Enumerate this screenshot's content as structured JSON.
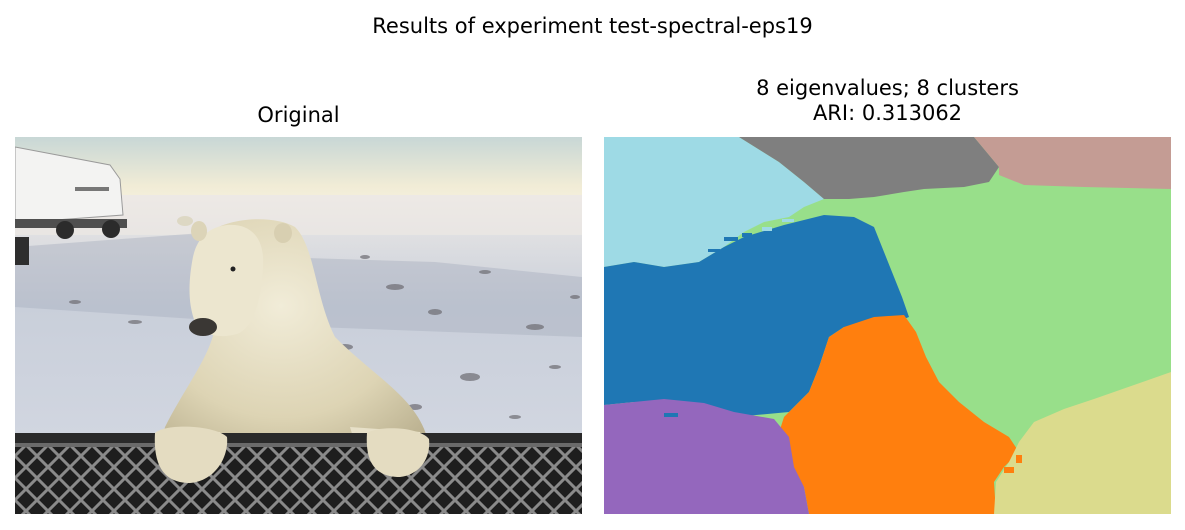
{
  "figure": {
    "suptitle": "Results of experiment test-spectral-eps19"
  },
  "left_panel": {
    "title": "Original"
  },
  "right_panel": {
    "title_line1": "8 eigenvalues; 8 clusters",
    "title_line2": "ARI: 0.313062",
    "cluster_colors": [
      "#1f77b4",
      "#ff7f0e",
      "#98df8a",
      "#9edae5",
      "#9467bd",
      "#7f7f7f",
      "#c49c94",
      "#dbdb8d"
    ]
  }
}
